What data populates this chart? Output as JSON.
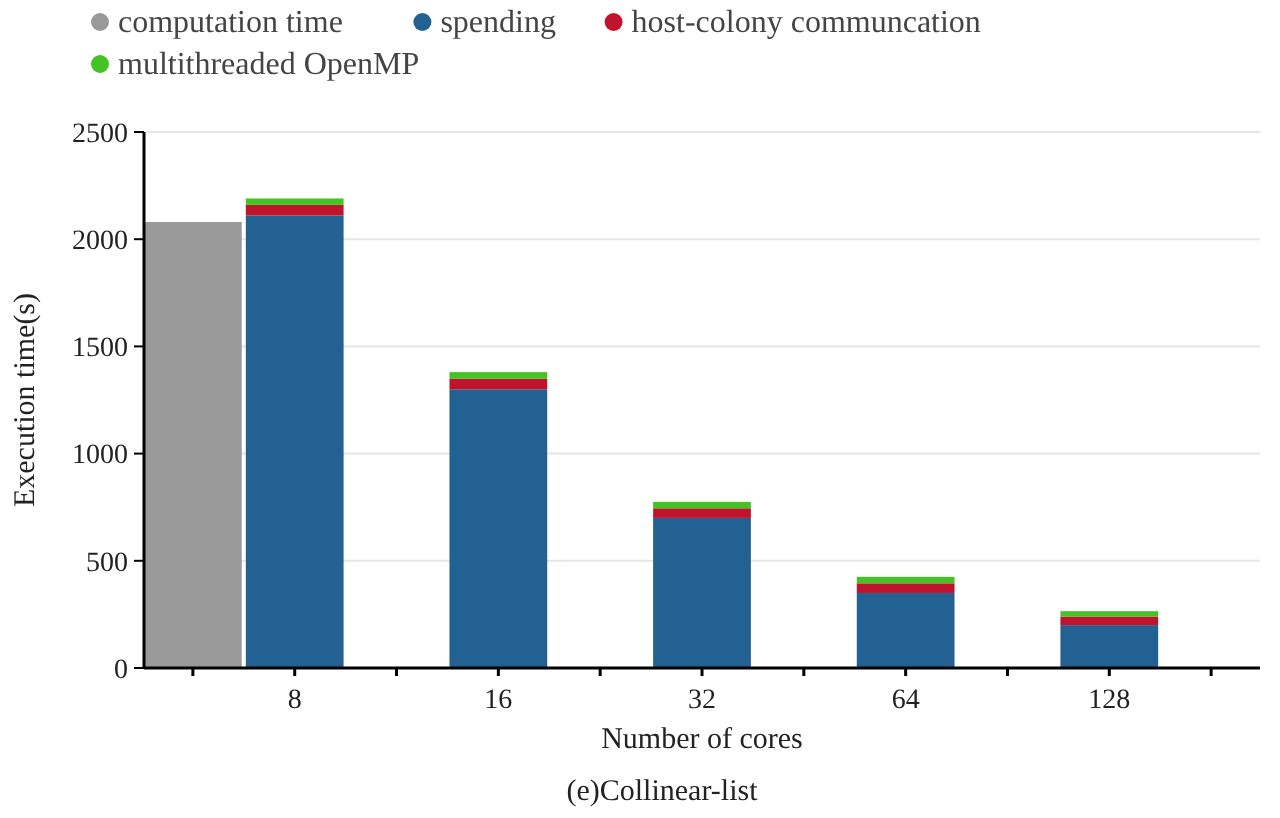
{
  "chart_data": {
    "type": "bar",
    "title": "(e)Collinear-list",
    "xlabel": "Number of cores",
    "ylabel": "Execution time(s)",
    "categories": [
      null,
      "8",
      null,
      "16",
      null,
      "32",
      null,
      "64",
      null,
      "128",
      null
    ],
    "series": [
      {
        "name": "computation time",
        "color": "#999999",
        "values": [
          2080,
          null,
          null,
          null,
          null,
          null,
          null,
          null,
          null,
          null,
          null
        ]
      },
      {
        "name": "spending",
        "color": "#236192",
        "values": [
          null,
          2110,
          null,
          1300,
          null,
          700,
          null,
          350,
          null,
          200,
          null
        ]
      },
      {
        "name": "host-colony communcation",
        "color": "#c0142c",
        "values": [
          null,
          50,
          null,
          50,
          null,
          45,
          null,
          45,
          null,
          40,
          null
        ]
      },
      {
        "name": "multithreaded OpenMP",
        "color": "#44c424",
        "values": [
          null,
          30,
          null,
          30,
          null,
          30,
          null,
          30,
          null,
          25,
          null
        ]
      }
    ],
    "stacked": true,
    "ylim": [
      0,
      2500
    ],
    "yticks": [
      0,
      500,
      1000,
      1500,
      2000,
      2500
    ],
    "grid": "y",
    "legend": "top left"
  }
}
